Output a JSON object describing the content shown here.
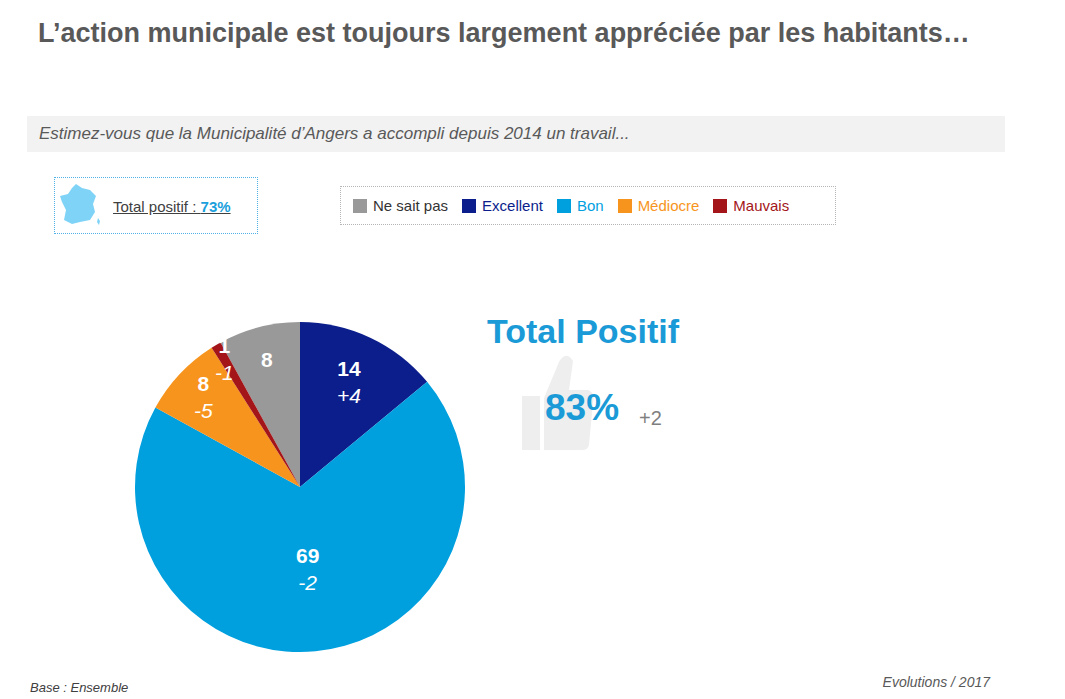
{
  "chart_data": {
    "type": "pie",
    "title": "L’action municipale est toujours largement appréciée par les habitants…",
    "subtitle": "Estimez-vous que la Municipalité d’Angers a accompli depuis 2014 un travail...",
    "categories": [
      "Ne sait pas",
      "Excellent",
      "Bon",
      "Médiocre",
      "Mauvais"
    ],
    "values": [
      8,
      14,
      69,
      8,
      1
    ],
    "colors": [
      "#999999",
      "#0b1e8c",
      "#00a0df",
      "#f7941d",
      "#a31519"
    ],
    "data_labels": true,
    "legend": "top",
    "evolutions": [
      null,
      {
        "value": 4,
        "label": "+4"
      },
      {
        "value": -2,
        "label": "-2"
      },
      {
        "value": -5,
        "label": "-5"
      },
      {
        "value": -1,
        "label": "-1"
      }
    ],
    "total_positif": {
      "text": "Total Positif",
      "value": 83,
      "value_label": "83%",
      "evolution": {
        "value": 2,
        "label": "+2"
      }
    },
    "national_reference": {
      "text": "Total positif :",
      "value": 73,
      "value_label": "73%"
    },
    "base": "Base : Ensemble",
    "footnote": "Evolutions / 2017"
  }
}
